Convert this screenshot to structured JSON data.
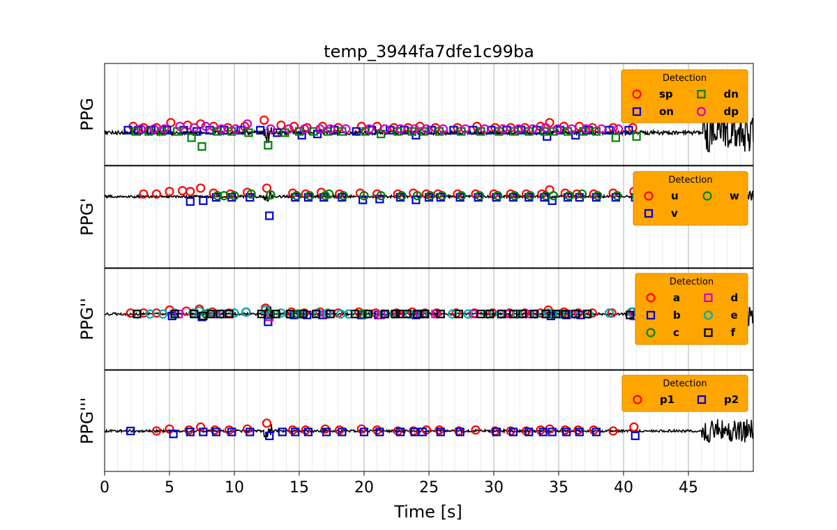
{
  "chart_data": {
    "type": "scatter",
    "title": "temp_3944fa7dfe1c99ba",
    "xlabel": "Time [s]",
    "xlim": [
      0,
      50
    ],
    "x_ticks": [
      0,
      5,
      10,
      15,
      20,
      25,
      30,
      35,
      40,
      45
    ],
    "x_tick_labels": [
      "0",
      "5",
      "10",
      "15",
      "20",
      "25",
      "30",
      "35",
      "40",
      "45"
    ],
    "grid": {
      "major": true,
      "minor": true
    },
    "legend_placement": "upper right",
    "panels": [
      {
        "ylabel": "PPG",
        "legend_title": "Detection",
        "legend_ncol": 2,
        "series": [
          {
            "name": "sp",
            "marker": "circle",
            "color": "#ff0000",
            "x": [
              2.2,
              3.0,
              4.0,
              5.1,
              6.4,
              7.4,
              8.4,
              9.5,
              10.8,
              12.3,
              13.6,
              14.6,
              15.6,
              16.8,
              18.0,
              19.8,
              21.0,
              22.3,
              23.4,
              24.3,
              25.5,
              27.2,
              28.7,
              30.1,
              31.3,
              32.4,
              33.6,
              34.3,
              35.4,
              36.6,
              37.6,
              39.2,
              40.7
            ],
            "y": [
              0.5,
              0.4,
              0.4,
              0.8,
              0.6,
              0.7,
              0.5,
              0.4,
              0.5,
              1.0,
              0.6,
              0.5,
              0.4,
              0.5,
              0.4,
              0.5,
              0.5,
              0.4,
              0.4,
              0.5,
              0.4,
              0.4,
              0.5,
              0.4,
              0.4,
              0.4,
              0.5,
              0.8,
              0.5,
              0.5,
              0.4,
              0.4,
              0.4
            ]
          },
          {
            "name": "on",
            "marker": "square",
            "color": "#0000cc",
            "x": [
              1.8,
              2.6,
              3.6,
              4.8,
              6.1,
              7.1,
              8.1,
              9.2,
              10.5,
              12.0,
              13.3,
              15.2,
              16.4,
              17.7,
              19.4,
              20.6,
              22.0,
              23.1,
              24.0,
              25.2,
              26.9,
              28.4,
              29.8,
              31.0,
              32.1,
              33.3,
              34.1,
              35.1,
              36.3,
              37.3,
              38.9,
              40.4
            ],
            "y": [
              0.2,
              0.2,
              0.2,
              0.2,
              0.2,
              0.1,
              0.2,
              0.2,
              0.2,
              0.2,
              0.0,
              -0.2,
              -0.1,
              0.2,
              0.1,
              0.2,
              0.2,
              0.2,
              -0.2,
              0.2,
              0.2,
              0.2,
              0.2,
              0.2,
              0.2,
              0.2,
              -0.3,
              0.2,
              -0.2,
              0.2,
              0.2,
              0.2
            ]
          },
          {
            "name": "dn",
            "marker": "square",
            "color": "#008000",
            "x": [
              2.4,
              3.4,
              4.4,
              5.6,
              6.7,
              7.5,
              8.7,
              9.8,
              11.1,
              12.6,
              13.9,
              15.0,
              16.1,
              17.2,
              18.3,
              20.1,
              21.3,
              22.6,
              23.7,
              24.6,
              25.8,
              27.5,
              29.0,
              30.4,
              31.6,
              32.7,
              33.9,
              34.6,
              35.7,
              36.9,
              37.9,
              39.4,
              41.0
            ],
            "y": [
              0.1,
              0.1,
              0.1,
              0.1,
              -0.4,
              -1.1,
              0.1,
              0.1,
              0.0,
              -1.0,
              0.0,
              0.1,
              0.1,
              0.1,
              0.1,
              0.1,
              -0.1,
              0.1,
              0.1,
              0.1,
              0.1,
              0.1,
              0.1,
              0.1,
              0.1,
              0.1,
              0.1,
              0.1,
              0.1,
              0.1,
              0.1,
              -0.4,
              -0.3
            ]
          },
          {
            "name": "dp",
            "marker": "circle",
            "color": "#cc00cc",
            "x": [
              2.8,
              3.8,
              4.6,
              5.8,
              6.9,
              7.8,
              9.0,
              10.1,
              11.0,
              12.8,
              14.2,
              15.4,
              16.6,
              17.4,
              18.6,
              20.4,
              21.6,
              22.8,
              23.9,
              24.8,
              26.1,
              27.8,
              29.3,
              30.7,
              31.9,
              33.0,
              34.0,
              34.9,
              36.0,
              37.1,
              38.3,
              39.6
            ],
            "y": [
              0.3,
              0.3,
              0.3,
              0.5,
              0.4,
              0.5,
              0.3,
              0.3,
              0.7,
              0.3,
              0.3,
              0.3,
              0.3,
              0.3,
              0.3,
              0.3,
              0.3,
              0.3,
              0.3,
              0.3,
              0.3,
              0.3,
              0.3,
              0.3,
              0.3,
              0.3,
              0.4,
              0.3,
              0.3,
              0.3,
              0.3,
              0.3
            ]
          }
        ]
      },
      {
        "ylabel": "PPG'",
        "legend_title": "Detection",
        "legend_ncol": 2,
        "series": [
          {
            "name": "u",
            "marker": "circle",
            "color": "#ff0000",
            "x": [
              3.0,
              4.0,
              5.0,
              6.0,
              6.6,
              7.4,
              8.4,
              9.7,
              11.0,
              12.5,
              14.5,
              15.5,
              16.7,
              18.1,
              19.7,
              21.0,
              22.6,
              23.8,
              24.8,
              25.7,
              27.2,
              28.6,
              30.0,
              31.3,
              32.5,
              33.7,
              34.3,
              35.5,
              36.4,
              37.7,
              39.2,
              40.8
            ],
            "y": [
              0.3,
              0.3,
              0.6,
              0.7,
              0.6,
              1.0,
              0.4,
              0.3,
              0.5,
              1.0,
              0.4,
              0.3,
              0.5,
              0.3,
              0.4,
              0.3,
              0.3,
              0.4,
              0.3,
              0.3,
              0.3,
              0.3,
              0.3,
              0.3,
              0.3,
              0.3,
              0.8,
              0.4,
              0.3,
              0.3,
              0.4,
              0.6
            ]
          },
          {
            "name": "v",
            "marker": "square",
            "color": "#0000cc",
            "x": [
              6.6,
              7.6,
              8.6,
              9.8,
              11.2,
              12.7,
              14.7,
              15.7,
              16.9,
              18.3,
              19.9,
              21.2,
              22.8,
              24.0,
              25.0,
              25.9,
              27.4,
              28.8,
              30.2,
              31.5,
              32.7,
              33.9,
              34.5,
              35.7,
              36.6,
              37.9,
              39.4,
              40.9
            ],
            "y": [
              -0.6,
              -0.5,
              -0.1,
              -0.1,
              -0.1,
              -2.3,
              -0.1,
              -0.1,
              -0.1,
              -0.1,
              -0.4,
              -0.3,
              -0.1,
              -0.4,
              -0.1,
              -0.1,
              -0.1,
              -0.1,
              -0.1,
              -0.1,
              -0.1,
              -0.1,
              -0.5,
              -0.1,
              -0.1,
              -0.1,
              -0.1,
              -0.1
            ]
          },
          {
            "name": "w",
            "marker": "circle",
            "color": "#008000",
            "x": [
              8.7,
              9.2,
              10.0,
              11.3,
              12.8,
              14.8,
              15.8,
              17.0,
              17.3,
              18.4,
              20.0,
              21.3,
              22.9,
              24.1,
              25.1,
              26.0,
              27.5,
              28.9,
              30.3,
              31.6,
              32.8,
              34.0,
              34.6,
              35.8,
              36.8,
              38.0,
              39.5,
              41.0
            ],
            "y": [
              0.1,
              0.1,
              0.1,
              0.3,
              0.2,
              0.1,
              0.1,
              0.1,
              0.3,
              0.1,
              0.1,
              0.1,
              0.1,
              0.1,
              0.1,
              0.1,
              0.1,
              0.1,
              0.1,
              0.1,
              0.1,
              0.1,
              0.1,
              0.1,
              0.3,
              0.1,
              0.1,
              0.1
            ]
          }
        ]
      },
      {
        "ylabel": "PPG''",
        "legend_title": "Detection",
        "legend_ncol": 2,
        "series": [
          {
            "name": "a",
            "marker": "circle",
            "color": "#ff0000",
            "x": [
              2.0,
              3.0,
              4.0,
              5.0,
              6.3,
              7.3,
              8.3,
              9.6,
              10.9,
              12.4,
              14.4,
              15.4,
              16.6,
              18.0,
              19.6,
              20.9,
              22.5,
              23.7,
              24.7,
              25.6,
              27.1,
              28.5,
              29.9,
              31.2,
              32.4,
              33.6,
              34.2,
              35.4,
              36.5,
              37.6,
              39.1,
              40.7
            ],
            "y": [
              0.1,
              0.1,
              0.1,
              0.4,
              0.3,
              0.5,
              0.2,
              0.1,
              0.2,
              0.6,
              0.2,
              0.1,
              0.2,
              0.1,
              0.2,
              0.1,
              0.1,
              0.2,
              0.1,
              0.1,
              0.1,
              0.1,
              0.1,
              0.1,
              0.1,
              0.1,
              0.4,
              0.2,
              0.1,
              0.1,
              0.1,
              0.2
            ]
          },
          {
            "name": "b",
            "marker": "square",
            "color": "#0000cc",
            "x": [
              5.2,
              7.5,
              12.6,
              14.6,
              15.6,
              16.8,
              19.8,
              21.1,
              24.0,
              34.4,
              35.6,
              36.7,
              40.9
            ],
            "y": [
              -0.2,
              -0.3,
              -0.8,
              -0.1,
              -0.1,
              -0.1,
              -0.1,
              -0.1,
              -0.1,
              -0.2,
              -0.1,
              -0.1,
              -0.2
            ]
          },
          {
            "name": "c",
            "marker": "circle",
            "color": "#008000",
            "x": [
              7.8,
              12.8,
              14.9,
              19.9,
              34.5
            ],
            "y": [
              0.0,
              0.0,
              0.0,
              0.0,
              0.0
            ]
          },
          {
            "name": "d",
            "marker": "square",
            "color": "#cc00cc",
            "x": [
              5.7,
              8.6,
              9.0,
              12.7,
              17.1,
              21.3,
              22.7,
              24.3,
              25.5,
              28.4,
              31.0,
              32.8,
              36.0,
              40.8
            ],
            "y": [
              0.0,
              0.0,
              0.0,
              -0.3,
              0.0,
              -0.1,
              0.0,
              0.0,
              0.0,
              0.0,
              0.0,
              0.0,
              0.0,
              -0.2
            ]
          },
          {
            "name": "e",
            "marker": "circle",
            "color": "#00aaaa",
            "x": [
              2.5,
              3.5,
              4.5,
              5.4,
              6.8,
              7.3,
              8.0,
              9.0,
              10.0,
              10.9,
              12.4,
              13.6,
              14.2,
              15.2,
              16.4,
              17.2,
              18.2,
              18.8,
              20.2,
              21.5,
              22.3,
              23.5,
              24.5,
              26.8,
              28.0,
              29.5,
              30.5,
              31.8,
              33.2,
              34.2,
              35.1,
              36.2,
              37.3,
              38.9,
              40.6
            ],
            "y": [
              0.0,
              0.0,
              0.0,
              0.1,
              0.1,
              0.3,
              0.1,
              0.0,
              0.1,
              0.2,
              0.4,
              0.1,
              0.0,
              0.0,
              0.1,
              0.1,
              0.0,
              0.0,
              0.0,
              0.0,
              0.0,
              0.0,
              0.0,
              0.0,
              0.0,
              0.0,
              0.0,
              0.0,
              0.0,
              0.1,
              0.0,
              0.0,
              0.0,
              0.1,
              0.2
            ]
          },
          {
            "name": "f",
            "marker": "square",
            "color": "#000000",
            "x": [
              2.5,
              5.4,
              6.9,
              7.6,
              8.2,
              8.9,
              9.6,
              12.1,
              13.2,
              14.3,
              15.3,
              16.3,
              17.4,
              19.3,
              20.3,
              21.6,
              22.4,
              22.8,
              23.3,
              24.1,
              24.7,
              25.9,
              27.3,
              29.0,
              29.7,
              30.6,
              31.5,
              32.2,
              33.1,
              34.0,
              34.8,
              35.5,
              36.3,
              37.2,
              40.5
            ],
            "y": [
              0.0,
              0.0,
              0.0,
              -0.2,
              0.0,
              0.0,
              0.0,
              0.0,
              0.0,
              0.0,
              0.0,
              0.0,
              0.0,
              0.0,
              0.0,
              0.0,
              0.0,
              0.0,
              0.0,
              0.0,
              0.0,
              0.0,
              0.0,
              0.0,
              0.0,
              0.0,
              0.0,
              0.0,
              0.0,
              0.0,
              0.0,
              0.0,
              0.0,
              0.0,
              -0.1
            ]
          }
        ]
      },
      {
        "ylabel": "PPG'''",
        "legend_title": "Detection",
        "legend_ncol": 2,
        "series": [
          {
            "name": "p1",
            "marker": "circle",
            "color": "#ff0000",
            "x": [
              4.0,
              5.0,
              6.5,
              7.4,
              8.5,
              9.6,
              11.0,
              12.5,
              14.5,
              15.5,
              17.0,
              18.1,
              19.8,
              21.0,
              22.6,
              23.8,
              24.8,
              25.8,
              27.3,
              28.6,
              30.1,
              31.3,
              32.5,
              33.6,
              34.3,
              35.5,
              36.5,
              37.7,
              39.2,
              40.8
            ],
            "y": [
              0.0,
              0.2,
              0.1,
              0.4,
              0.1,
              0.1,
              0.2,
              0.8,
              0.1,
              0.1,
              0.2,
              0.1,
              0.2,
              0.1,
              0.0,
              0.0,
              0.1,
              0.1,
              0.0,
              0.1,
              0.0,
              0.0,
              0.0,
              0.1,
              0.2,
              0.1,
              0.1,
              0.1,
              0.0,
              0.4
            ]
          },
          {
            "name": "p2",
            "marker": "square",
            "color": "#0000cc",
            "x": [
              2.0,
              5.3,
              6.6,
              7.6,
              8.6,
              9.8,
              11.2,
              12.7,
              13.7,
              14.7,
              15.7,
              17.1,
              18.3,
              20.0,
              21.2,
              22.8,
              23.9,
              24.5,
              25.9,
              27.4,
              30.2,
              31.5,
              32.7,
              33.8,
              34.5,
              35.6,
              36.6,
              37.9,
              40.9
            ],
            "y": [
              0.0,
              -0.3,
              -0.1,
              -0.1,
              -0.1,
              -0.1,
              -0.1,
              -0.5,
              -0.1,
              -0.1,
              -0.1,
              -0.1,
              -0.1,
              -0.1,
              -0.1,
              -0.1,
              -0.1,
              -0.1,
              -0.1,
              -0.1,
              -0.1,
              -0.1,
              -0.1,
              -0.1,
              -0.1,
              -0.1,
              -0.1,
              -0.1,
              -0.5
            ]
          }
        ]
      }
    ]
  }
}
